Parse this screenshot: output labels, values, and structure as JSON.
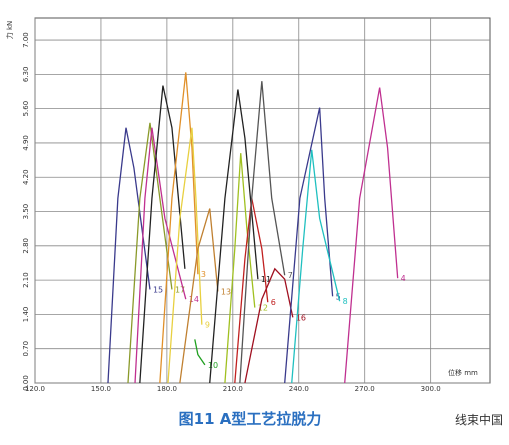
{
  "chart_data": {
    "type": "line",
    "x_label": "位移 mm",
    "y_label": "力 kN",
    "caption": "图11  A型工艺拉脱力",
    "watermark": "线束中国",
    "xlim": [
      120,
      327
    ],
    "ylim": [
      0,
      7.45
    ],
    "xticks": [
      {
        "value": 120,
        "label": "120.0"
      },
      {
        "value": 150,
        "label": "150.0"
      },
      {
        "value": 180,
        "label": "180.0"
      },
      {
        "value": 210,
        "label": "210.0"
      },
      {
        "value": 240,
        "label": "240.0"
      },
      {
        "value": 270,
        "label": "270.0"
      },
      {
        "value": 300,
        "label": "300.0"
      }
    ],
    "yticks": [
      {
        "value": 0,
        "label": "0.00"
      },
      {
        "value": 0.7,
        "label": "0.70"
      },
      {
        "value": 1.4,
        "label": "1.40"
      },
      {
        "value": 2.1,
        "label": "2.10"
      },
      {
        "value": 2.8,
        "label": "2.80"
      },
      {
        "value": 3.5,
        "label": "3.50"
      },
      {
        "value": 4.2,
        "label": "4.20"
      },
      {
        "value": 4.9,
        "label": "4.90"
      },
      {
        "value": 5.6,
        "label": "5.60"
      },
      {
        "value": 6.3,
        "label": "6.30"
      },
      {
        "value": 7,
        "label": "7.00"
      }
    ],
    "grid": true,
    "series": [
      {
        "name": "15",
        "color": "#3a3a8c",
        "x": [
          153.2,
          157.7,
          161.4,
          165.0,
          172.3
        ],
        "values": [
          0,
          3.77,
          5.21,
          4.39,
          1.91
        ]
      },
      {
        "name": "17",
        "color": "#8a9a2a",
        "x": [
          162.3,
          167.7,
          172.3,
          176.8,
          182.3
        ],
        "values": [
          0,
          3.77,
          5.31,
          3.77,
          1.91
        ]
      },
      {
        "name": "14",
        "color": "#c03090",
        "x": [
          165.5,
          170.0,
          173.2,
          179.1,
          188.6
        ],
        "values": [
          0,
          3.77,
          5.21,
          3.36,
          1.71
        ]
      },
      {
        "color": "#222222",
        "x": [
          167.7,
          173.2,
          178.2,
          182.3,
          188.2
        ],
        "values": [
          0,
          3.77,
          6.07,
          5.21,
          2.33
        ]
      },
      {
        "name": "3",
        "color": "#e0902a",
        "x": [
          176.8,
          182.3,
          188.6,
          191.4,
          194.1
        ],
        "values": [
          0,
          3.77,
          6.34,
          4.8,
          2.22
        ]
      },
      {
        "name": "9",
        "color": "#e8d040",
        "x": [
          180.5,
          185.9,
          191.4,
          193.2,
          195.9
        ],
        "values": [
          0,
          3.36,
          5.21,
          3.77,
          1.19
        ]
      },
      {
        "name": "10",
        "color": "#20a020",
        "x": [
          192.7,
          194.1,
          197.3
        ],
        "values": [
          0.89,
          0.58,
          0.37
        ]
      },
      {
        "name": "13",
        "color": "#c08030",
        "x": [
          185.9,
          194.1,
          199.5,
          203.2
        ],
        "values": [
          0,
          2.74,
          3.56,
          1.87
        ]
      },
      {
        "name": "11",
        "color": "#222222",
        "x": [
          199.5,
          206.4,
          212.3,
          215.5,
          221.4
        ],
        "values": [
          0,
          3.77,
          5.99,
          5.0,
          2.12
        ]
      },
      {
        "name": "12",
        "color": "#a0c020",
        "x": [
          206.4,
          210.9,
          213.6,
          216.4,
          220.0
        ],
        "values": [
          0,
          2.74,
          4.69,
          3.15,
          1.54
        ]
      },
      {
        "name": "6",
        "color": "#c02020",
        "x": [
          210.9,
          215.5,
          218.6,
          223.2,
          225.9
        ],
        "values": [
          0,
          2.53,
          3.77,
          2.74,
          1.65
        ]
      },
      {
        "name": "7",
        "color": "#555555",
        "x": [
          213.2,
          218.6,
          223.2,
          227.7,
          233.6
        ],
        "values": [
          0,
          3.77,
          6.16,
          3.77,
          2.2
        ]
      },
      {
        "name": "16",
        "color": "#a01020",
        "x": [
          215.5,
          223.2,
          229.1,
          233.6,
          237.3
        ],
        "values": [
          0,
          1.71,
          2.33,
          2.12,
          1.34
        ]
      },
      {
        "name": "5",
        "color": "#3a3a8c",
        "x": [
          233.6,
          240.5,
          249.5,
          251.8,
          255.4
        ],
        "values": [
          0,
          3.77,
          5.62,
          3.77,
          1.77
        ]
      },
      {
        "name": "8",
        "color": "#20c0c0",
        "x": [
          236.8,
          241.8,
          245.9,
          249.5,
          258.6
        ],
        "values": [
          0,
          2.74,
          4.76,
          3.36,
          1.67
        ]
      },
      {
        "name": "4",
        "color": "#c03090",
        "x": [
          260.9,
          267.7,
          276.8,
          280.4,
          285.0
        ],
        "values": [
          0,
          3.77,
          6.03,
          4.8,
          2.14
        ]
      }
    ]
  }
}
